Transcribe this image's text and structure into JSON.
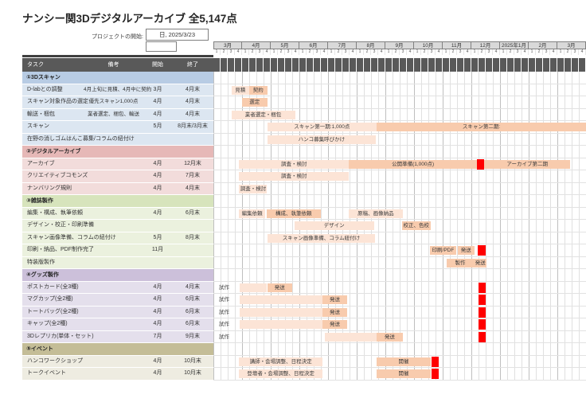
{
  "title": "ナンシー関3Dデジタルアーカイブ 全5,147点",
  "project_start": {
    "label": "プロジェクトの開始:",
    "value": "日, 2025/3/23"
  },
  "table_headers": {
    "task": "タスク",
    "note": "備考",
    "start": "開始",
    "end": "終了"
  },
  "chart_data": {
    "type": "table",
    "subtype": "gantt",
    "months": [
      "3月",
      "4月",
      "5月",
      "6月",
      "7月",
      "8月",
      "9月",
      "10月",
      "11月",
      "12月",
      "2025年1月",
      "2月",
      "3月"
    ],
    "week_labels": [
      "1",
      "2",
      "3",
      "4"
    ],
    "weeks_per_month": 4,
    "bar_colors": {
      "light": "#FCE4D6",
      "mid": "#F8CBAD",
      "red": "#FF0000"
    },
    "sections": [
      {
        "label": "①3Dスキャン",
        "header_color": "#B8CCE4",
        "row_color": "#DCE6F1",
        "tasks": [
          {
            "name": "D-labとの調整",
            "note": "4月上旬に見積、4月中に契約",
            "start": "3月",
            "end": "4月末",
            "bars": [
              {
                "label": "見積",
                "s": 2.5,
                "e": 5,
                "shade": "light"
              },
              {
                "label": "契約",
                "s": 5,
                "e": 7.5,
                "shade": "mid"
              }
            ]
          },
          {
            "name": "スキャン対象作品の選定",
            "note": "優先スキャン1,000点",
            "start": "4月",
            "end": "4月末",
            "bars": [
              {
                "label": "選定",
                "s": 4,
                "e": 7.5,
                "shade": "mid"
              }
            ]
          },
          {
            "name": "輸送・梱包",
            "note": "業者選定、梱包、輸送",
            "start": "4月",
            "end": "4月末",
            "bars": [
              {
                "label": "業者選定・梱包",
                "s": 2.5,
                "e": 11.4,
                "shade": "light"
              }
            ]
          },
          {
            "name": "スキャン",
            "note": "",
            "start": "5月",
            "end": "8月末/3月末",
            "bars": [
              {
                "label": "スキャン第一期:1,000点",
                "s": 7.5,
                "e": 22.8,
                "shade": "light"
              },
              {
                "label": "スキャン第二期:",
                "s": 22.8,
                "e": 52,
                "shade": "mid"
              }
            ]
          },
          {
            "name": "在野の消しゴムはんこ募集/コラムの紐付け",
            "note": "",
            "start": "",
            "end": "",
            "bars": [
              {
                "label": "ハンコ募集呼びかけ",
                "s": 7.5,
                "e": 22.7,
                "shade": "light"
              }
            ]
          }
        ]
      },
      {
        "label": "②デジタルアーカイブ",
        "header_color": "#E6B8B7",
        "row_color": "#F2DCDB",
        "tasks": [
          {
            "name": "アーカイブ",
            "note": "",
            "start": "4月",
            "end": "12月末",
            "bars": [
              {
                "label": "調査・検討",
                "s": 3.6,
                "e": 18.9,
                "shade": "light"
              },
              {
                "label": "公開準備(1,000点)",
                "s": 18.9,
                "e": 36.8,
                "shade": "mid"
              },
              {
                "label": "",
                "s": 36.8,
                "e": 37.8,
                "shade": "red"
              },
              {
                "label": "アーカイブ第二期",
                "s": 37.8,
                "e": 49.8,
                "shade": "mid"
              }
            ]
          },
          {
            "name": "クリエイティブコモンズ",
            "note": "",
            "start": "4月",
            "end": "7月末",
            "bars": [
              {
                "label": "調査・検討",
                "s": 3.6,
                "e": 18.9,
                "shade": "light"
              }
            ]
          },
          {
            "name": "ナンバリング規則",
            "note": "",
            "start": "4月",
            "end": "4月末",
            "bars": [
              {
                "label": "調査・検討",
                "s": 3.6,
                "e": 7.5,
                "shade": "light"
              }
            ]
          }
        ]
      },
      {
        "label": "③雑誌製作",
        "header_color": "#D7E4BC",
        "row_color": "#EBF1DE",
        "tasks": [
          {
            "name": "編集・構成、執筆依頼",
            "note": "",
            "start": "4月",
            "end": "6月末",
            "bars": [
              {
                "label": "編集依頼",
                "s": 3.6,
                "e": 7.2,
                "shade": "light"
              },
              {
                "label": "構成、執筆依頼",
                "s": 7.4,
                "e": 15,
                "shade": "mid"
              },
              {
                "label": "原稿、画像納品",
                "s": 18.9,
                "e": 26.4,
                "shade": "light"
              }
            ]
          },
          {
            "name": "デザイン・校正・印刷準備",
            "note": "",
            "start": "",
            "end": "",
            "bars": [
              {
                "label": "デザイン",
                "s": 11.3,
                "e": 22.4,
                "shade": "light"
              },
              {
                "label": "校正、色校",
                "s": 26.3,
                "e": 30.3,
                "shade": "mid"
              }
            ]
          },
          {
            "name": "スキャン画像準備、コラムの紐付け",
            "note": "",
            "start": "5月",
            "end": "8月末",
            "bars": [
              {
                "label": "スキャン画像準備、コラム紐付け",
                "s": 7.5,
                "e": 22.6,
                "shade": "light"
              }
            ]
          },
          {
            "name": "印刷・納品、PDF制作完了",
            "note": "",
            "start": "11月",
            "end": "",
            "bars": [
              {
                "label": "印刷/PDF",
                "s": 30.2,
                "e": 33.9,
                "shade": "mid"
              },
              {
                "label": "発送",
                "s": 34.1,
                "e": 36.4,
                "shade": "mid"
              },
              {
                "label": "",
                "s": 36.9,
                "e": 38,
                "shade": "red"
              }
            ]
          },
          {
            "name": "特装版製作",
            "note": "",
            "start": "",
            "end": "",
            "bars": [
              {
                "label": "製作",
                "s": 32.5,
                "e": 36.4,
                "shade": "mid"
              },
              {
                "label": "発送",
                "s": 36.4,
                "e": 38.1,
                "shade": "mid"
              }
            ]
          }
        ]
      },
      {
        "label": "④グッズ製作",
        "header_color": "#CCC0DA",
        "row_color": "#E4DFEC",
        "tasks": [
          {
            "name": "ポストカード(全3種)",
            "note": "",
            "start": "4月",
            "end": "4月末",
            "bars": [
              {
                "label": "試作",
                "s": 0,
                "e": 3,
                "shade": "label"
              },
              {
                "label": "",
                "s": 3.7,
                "e": 7.5,
                "shade": "light"
              },
              {
                "label": "発送",
                "s": 7.5,
                "e": 11,
                "shade": "mid"
              },
              {
                "label": "",
                "s": 37,
                "e": 38,
                "shade": "red"
              }
            ]
          },
          {
            "name": "マグカップ(全2種)",
            "note": "",
            "start": "4月",
            "end": "6月末",
            "bars": [
              {
                "label": "試作",
                "s": 0,
                "e": 3,
                "shade": "label"
              },
              {
                "label": "",
                "s": 3.7,
                "e": 15.2,
                "shade": "light"
              },
              {
                "label": "発送",
                "s": 15.2,
                "e": 18.7,
                "shade": "mid"
              },
              {
                "label": "",
                "s": 37,
                "e": 38,
                "shade": "red"
              }
            ]
          },
          {
            "name": "トートバッグ(全2種)",
            "note": "",
            "start": "4月",
            "end": "6月末",
            "bars": [
              {
                "label": "試作",
                "s": 0,
                "e": 3,
                "shade": "label"
              },
              {
                "label": "",
                "s": 3.7,
                "e": 15.2,
                "shade": "light"
              },
              {
                "label": "発送",
                "s": 15.2,
                "e": 18.7,
                "shade": "mid"
              },
              {
                "label": "",
                "s": 37,
                "e": 38,
                "shade": "red"
              }
            ]
          },
          {
            "name": "キャップ(全2種)",
            "note": "",
            "start": "4月",
            "end": "6月末",
            "bars": [
              {
                "label": "試作",
                "s": 0,
                "e": 3,
                "shade": "label"
              },
              {
                "label": "",
                "s": 3.7,
                "e": 15.2,
                "shade": "light"
              },
              {
                "label": "発送",
                "s": 15.2,
                "e": 18.7,
                "shade": "mid"
              },
              {
                "label": "",
                "s": 37,
                "e": 38,
                "shade": "red"
              }
            ]
          },
          {
            "name": "3Dレプリカ(単体・セット)",
            "note": "",
            "start": "7月",
            "end": "9月末",
            "bars": [
              {
                "label": "試作",
                "s": 0,
                "e": 3,
                "shade": "label"
              },
              {
                "label": "",
                "s": 15.6,
                "e": 22.8,
                "shade": "light"
              },
              {
                "label": "発送",
                "s": 22.8,
                "e": 26.4,
                "shade": "mid"
              },
              {
                "label": "",
                "s": 37,
                "e": 38,
                "shade": "red"
              }
            ]
          }
        ]
      },
      {
        "label": "⑤イベント",
        "header_color": "#C4BD97",
        "row_color": "#EEECE1",
        "tasks": [
          {
            "name": "ハンコワークショップ",
            "note": "",
            "start": "4月",
            "end": "10月末",
            "bars": [
              {
                "label": "講師・会場調整、日程決定",
                "s": 3.6,
                "e": 15.2,
                "shade": "light"
              },
              {
                "label": "開催",
                "s": 22.8,
                "e": 30.3,
                "shade": "mid"
              },
              {
                "label": "",
                "s": 30.4,
                "e": 31.4,
                "shade": "red"
              }
            ]
          },
          {
            "name": "トークイベント",
            "note": "",
            "start": "4月",
            "end": "10月末",
            "bars": [
              {
                "label": "登壇者・会場調整、日程決定",
                "s": 3.6,
                "e": 15.2,
                "shade": "light"
              },
              {
                "label": "開催",
                "s": 22.8,
                "e": 30.3,
                "shade": "mid"
              },
              {
                "label": "",
                "s": 30.4,
                "e": 31.4,
                "shade": "red"
              }
            ]
          }
        ]
      }
    ]
  }
}
